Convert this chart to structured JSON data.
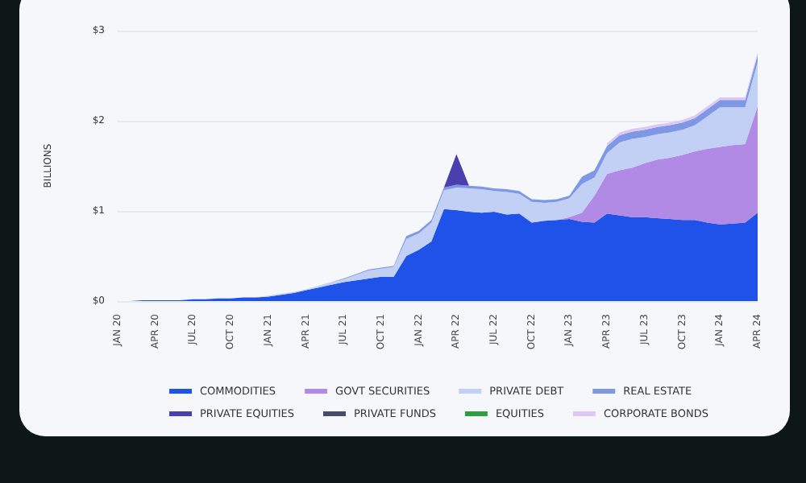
{
  "chart_data": {
    "type": "area",
    "stacked": true,
    "ylabel": "BILLIONS",
    "grid": "y",
    "legend": "bottom",
    "categories": [
      "JAN 20",
      null,
      null,
      "APR 20",
      null,
      null,
      "JUL 20",
      null,
      null,
      "OCT 20",
      null,
      null,
      "JAN 21",
      null,
      null,
      "APR 21",
      null,
      null,
      "JUL 21",
      null,
      null,
      "OCT 21",
      null,
      null,
      "JAN 22",
      null,
      null,
      "APR 22",
      null,
      null,
      "JUL 22",
      null,
      null,
      "OCT 22",
      null,
      null,
      "JAN 23",
      null,
      null,
      "APR 23",
      null,
      null,
      "JUL 23",
      null,
      null,
      "OCT 23",
      null,
      null,
      "JAN 24",
      null,
      null,
      "APR 24"
    ],
    "ylim": [
      0,
      3
    ],
    "yticks": [
      {
        "value": 0,
        "label": "$0"
      },
      {
        "value": 1,
        "label": "$1"
      },
      {
        "value": 2,
        "label": "$2"
      },
      {
        "value": 3,
        "label": "$3"
      }
    ],
    "series": [
      {
        "name": "COMMODITIES",
        "color": "#1f52e8",
        "values": [
          0,
          0,
          0.01,
          0.01,
          0.01,
          0.01,
          0.02,
          0.02,
          0.03,
          0.03,
          0.04,
          0.04,
          0.05,
          0.07,
          0.09,
          0.12,
          0.15,
          0.18,
          0.21,
          0.23,
          0.25,
          0.27,
          0.27,
          0.5,
          0.57,
          0.66,
          1.02,
          1.01,
          0.99,
          0.98,
          0.99,
          0.96,
          0.97,
          0.87,
          0.89,
          0.9,
          0.91,
          0.88,
          0.87,
          0.97,
          0.95,
          0.93,
          0.93,
          0.92,
          0.91,
          0.9,
          0.9,
          0.87,
          0.85,
          0.86,
          0.87,
          0.98
        ]
      },
      {
        "name": "GOVT SECURITIES",
        "color": "#b18ae6",
        "values": [
          0,
          0,
          0,
          0,
          0,
          0,
          0,
          0,
          0,
          0,
          0,
          0,
          0,
          0,
          0,
          0,
          0,
          0,
          0,
          0,
          0,
          0,
          0,
          0,
          0,
          0,
          0,
          0,
          0,
          0,
          0,
          0,
          0,
          0,
          0,
          0,
          0.02,
          0.1,
          0.3,
          0.44,
          0.5,
          0.55,
          0.6,
          0.65,
          0.68,
          0.72,
          0.76,
          0.82,
          0.86,
          0.87,
          0.87,
          1.18
        ]
      },
      {
        "name": "PRIVATE DEBT",
        "color": "#c2d0f5",
        "values": [
          0,
          0,
          0,
          0,
          0,
          0,
          0,
          0,
          0,
          0,
          0,
          0,
          0.01,
          0.01,
          0.01,
          0.01,
          0.02,
          0.03,
          0.03,
          0.06,
          0.09,
          0.09,
          0.11,
          0.19,
          0.18,
          0.21,
          0.21,
          0.25,
          0.26,
          0.26,
          0.23,
          0.25,
          0.22,
          0.23,
          0.2,
          0.2,
          0.21,
          0.32,
          0.2,
          0.23,
          0.31,
          0.32,
          0.29,
          0.28,
          0.28,
          0.28,
          0.29,
          0.36,
          0.44,
          0.42,
          0.41,
          0.49
        ]
      },
      {
        "name": "REAL ESTATE",
        "color": "#7e98e6",
        "values": [
          0,
          0,
          0,
          0,
          0,
          0,
          0,
          0,
          0,
          0,
          0,
          0,
          0,
          0,
          0,
          0,
          0,
          0,
          0.01,
          0.01,
          0.01,
          0.01,
          0.01,
          0.03,
          0.03,
          0.03,
          0.03,
          0.03,
          0.03,
          0.03,
          0.03,
          0.03,
          0.03,
          0.03,
          0.03,
          0.03,
          0.03,
          0.08,
          0.08,
          0.08,
          0.08,
          0.08,
          0.08,
          0.08,
          0.08,
          0.08,
          0.08,
          0.08,
          0.08,
          0.08,
          0.08,
          0.08
        ]
      },
      {
        "name": "PRIVATE EQUITIES",
        "color": "#4b3fb0",
        "values": [
          null,
          null,
          null,
          null,
          null,
          null,
          null,
          null,
          null,
          null,
          null,
          null,
          null,
          null,
          null,
          null,
          null,
          null,
          null,
          null,
          null,
          null,
          null,
          null,
          null,
          null,
          0,
          0.34,
          0,
          null,
          null,
          null,
          null,
          null,
          null,
          null,
          null,
          null,
          null,
          null,
          null,
          null,
          null,
          null,
          null,
          null,
          null,
          null,
          null,
          null,
          null,
          null
        ]
      },
      {
        "name": "PRIVATE FUNDS",
        "color": "#4a4a6a",
        "values": [
          null,
          null,
          null,
          null,
          null,
          null,
          null,
          null,
          null,
          null,
          null,
          null,
          null,
          null,
          null,
          null,
          null,
          null,
          null,
          null,
          null,
          null,
          null,
          null,
          null,
          null,
          null,
          null,
          null,
          null,
          null,
          null,
          null,
          null,
          null,
          null,
          null,
          null,
          null,
          null,
          null,
          null,
          null,
          null,
          null,
          null,
          null,
          null,
          null,
          null,
          null,
          null
        ]
      },
      {
        "name": "EQUITIES",
        "color": "#2e9e3e",
        "values": [
          null,
          null,
          null,
          null,
          null,
          null,
          null,
          null,
          null,
          null,
          null,
          null,
          null,
          null,
          null,
          null,
          null,
          null,
          null,
          null,
          null,
          null,
          null,
          null,
          null,
          null,
          null,
          null,
          null,
          null,
          null,
          null,
          null,
          null,
          null,
          null,
          null,
          null,
          null,
          null,
          null,
          null,
          null,
          null,
          null,
          null,
          null,
          null,
          null,
          null,
          null,
          null
        ]
      },
      {
        "name": "CORPORATE BONDS",
        "color": "#dcc8f2",
        "values": [
          null,
          null,
          null,
          null,
          null,
          null,
          null,
          null,
          null,
          null,
          null,
          null,
          null,
          null,
          null,
          null,
          null,
          null,
          null,
          null,
          null,
          null,
          null,
          null,
          null,
          null,
          null,
          null,
          null,
          null,
          null,
          null,
          null,
          null,
          null,
          null,
          null,
          null,
          null,
          0.03,
          0.03,
          0.03,
          0.03,
          0.03,
          0.03,
          0.03,
          0.03,
          0.03,
          0.03,
          0.03,
          0.03,
          0.03
        ]
      }
    ]
  }
}
